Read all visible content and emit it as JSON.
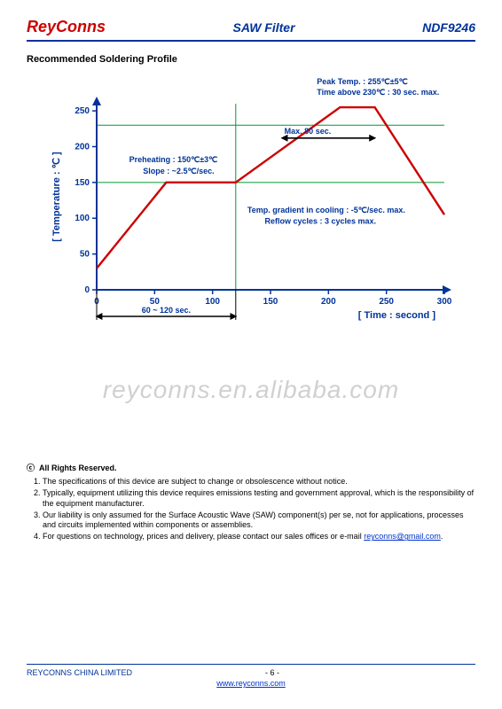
{
  "header": {
    "brand": "ReyConns",
    "title": "SAW Filter",
    "part": "NDF9246"
  },
  "section_title": "Recommended Soldering Profile",
  "chart": {
    "type": "line",
    "x_label": "[ Time : second ]",
    "y_label": "[ Temperature : ℃ ]",
    "xlim": [
      0,
      300
    ],
    "ylim": [
      0,
      260
    ],
    "x_ticks": [
      0,
      50,
      100,
      150,
      200,
      250,
      300
    ],
    "y_ticks": [
      0,
      50,
      100,
      150,
      200,
      250
    ],
    "line_color": "#cc0000",
    "line_width": 2.4,
    "axis_color": "#003399",
    "grid_color": "#00aa55",
    "tick_color": "#003399",
    "label_color": "#003399",
    "annot_color": "#003399",
    "guide_color": "#009933",
    "contrast_line_color": "#000000",
    "background_color": "#ffffff",
    "font_size_ticks": 10,
    "font_size_axis": 11,
    "font_size_annot": 9,
    "profile_points": [
      {
        "t": 0,
        "T": 30
      },
      {
        "t": 60,
        "T": 150
      },
      {
        "t": 120,
        "T": 150
      },
      {
        "t": 210,
        "T": 255
      },
      {
        "t": 240,
        "T": 255
      },
      {
        "t": 300,
        "T": 105
      }
    ],
    "annotations": {
      "peak_line1": "Peak Temp. : 255℃±5℃",
      "peak_line2": "Time above 230℃ : 30 sec. max.",
      "preheat_line1": "Preheating : 150℃±3℃",
      "preheat_line2": "Slope : ~2.5℃/sec.",
      "max80": "Max. 80 sec.",
      "cooling_line1": "Temp. gradient in cooling : -5℃/sec. max.",
      "cooling_line2": "Reflow cycles : 3 cycles max.",
      "x_range": "60 ~ 120 sec."
    }
  },
  "watermark": "reyconns.en.alibaba.com",
  "rights": {
    "title_symbol": "ⓒ",
    "title": "All Rights Reserved.",
    "items": [
      "The specifications of this device are subject to change or obsolescence without notice.",
      "Typically, equipment utilizing this device requires emissions testing and government approval, which is the responsibility of the equipment manufacturer.",
      "Our liability is only assumed for the Surface Acoustic Wave (SAW) component(s) per se, not for applications, processes and circuits implemented within components or assemblies.",
      "For questions on technology, prices and delivery, please contact our sales offices or e-mail "
    ],
    "email": "reyconns@gmail.com"
  },
  "footer": {
    "company": "REYCONNS CHINA LIMITED",
    "page": "- 6 -",
    "url": "www.reyconns.com"
  }
}
